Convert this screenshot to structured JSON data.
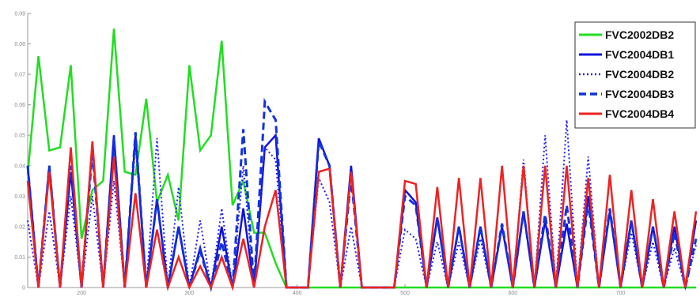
{
  "chart_data": {
    "type": "line",
    "title": "",
    "xlabel": "",
    "ylabel": "",
    "xlim": [
      0,
      62
    ],
    "ylim": [
      0,
      0.09
    ],
    "yticks": [
      {
        "value": 0,
        "label": "0"
      },
      {
        "value": 0.01,
        "label": "0.01"
      },
      {
        "value": 0.02,
        "label": "0.02"
      },
      {
        "value": 0.03,
        "label": "0.03"
      },
      {
        "value": 0.04,
        "label": "0.04"
      },
      {
        "value": 0.05,
        "label": "0.05"
      },
      {
        "value": 0.06,
        "label": "0.06"
      },
      {
        "value": 0.07,
        "label": "0.07"
      },
      {
        "value": 0.08,
        "label": "0.08"
      },
      {
        "value": 0.09,
        "label": "0.09"
      }
    ],
    "xticks": [
      {
        "value": 5,
        "label": "200"
      },
      {
        "value": 15,
        "label": "300"
      },
      {
        "value": 25,
        "label": "400"
      },
      {
        "value": 35,
        "label": "500"
      },
      {
        "value": 45,
        "label": "600"
      },
      {
        "value": 55,
        "label": "700"
      }
    ],
    "grid": false,
    "legend_position": "top-right",
    "series": [
      {
        "name": "FVC2002DB2",
        "color": "#22dd22",
        "dash": "solid",
        "values": [
          0.037,
          0.076,
          0.045,
          0.046,
          0.073,
          0.016,
          0.032,
          0.035,
          0.085,
          0.038,
          0.037,
          0.062,
          0.028,
          0.037,
          0.022,
          0.073,
          0.045,
          0.05,
          0.081,
          0.027,
          0.035,
          0.018,
          0.018,
          0.008,
          0,
          0,
          0,
          0,
          0,
          0,
          0,
          0,
          0,
          0,
          0,
          0,
          0,
          0,
          0,
          0,
          0,
          0,
          0,
          0,
          0,
          0,
          0,
          0,
          0,
          0,
          0,
          0,
          0,
          0,
          0,
          0,
          0,
          0,
          0,
          0,
          0,
          0,
          0
        ]
      },
      {
        "name": "FVC2004DB1",
        "color": "#1111dd",
        "dash": "solid",
        "values": [
          0.04,
          0,
          0.04,
          0,
          0.038,
          0,
          0.047,
          0,
          0.05,
          0,
          0.05,
          0,
          0.029,
          0,
          0.02,
          0,
          0.013,
          0,
          0.02,
          0,
          0.026,
          0,
          0.046,
          0.05,
          0,
          0,
          0,
          0.049,
          0.04,
          0,
          0.04,
          0,
          0,
          0,
          0,
          0.032,
          0.028,
          0,
          0.023,
          0,
          0.02,
          0,
          0.02,
          0,
          0.02,
          0,
          0.025,
          0,
          0.022,
          0,
          0.021,
          0,
          0.03,
          0,
          0.025,
          0,
          0.022,
          0,
          0.02,
          0,
          0.02,
          0,
          0.022
        ]
      },
      {
        "name": "FVC2004DB2",
        "color": "#2222ee",
        "dash": "dotted",
        "values": [
          0.022,
          0,
          0.025,
          0,
          0.03,
          0,
          0.03,
          0,
          0.035,
          0,
          0.047,
          0,
          0.049,
          0,
          0.033,
          0,
          0.022,
          0,
          0.026,
          0,
          0.04,
          0,
          0.046,
          0.042,
          0,
          0,
          0,
          0.036,
          0.028,
          0,
          0.02,
          0,
          0,
          0,
          0,
          0.019,
          0.016,
          0,
          0.015,
          0,
          0.015,
          0,
          0.016,
          0,
          0.02,
          0,
          0.042,
          0,
          0.05,
          0,
          0.055,
          0,
          0.043,
          0,
          0.025,
          0,
          0.018,
          0,
          0.015,
          0,
          0.013,
          0,
          0.014
        ]
      },
      {
        "name": "FVC2004DB3",
        "color": "#1133dd",
        "dash": "dashed",
        "values": [
          0.04,
          0,
          0.04,
          0,
          0.04,
          0,
          0.045,
          0,
          0.049,
          0,
          0.051,
          0,
          0.029,
          0,
          0.02,
          0,
          0.012,
          0,
          0.015,
          0,
          0.052,
          0,
          0.061,
          0.055,
          0,
          0,
          0,
          0.048,
          0.04,
          0,
          0.036,
          0,
          0,
          0,
          0,
          0.03,
          0.027,
          0,
          0.023,
          0,
          0.02,
          0,
          0.02,
          0,
          0.021,
          0,
          0.025,
          0,
          0.024,
          0,
          0.027,
          0,
          0.028,
          0,
          0.026,
          0,
          0.022,
          0,
          0.02,
          0,
          0.018,
          0,
          0.016
        ]
      },
      {
        "name": "FVC2004DB4",
        "color": "#ee2222",
        "dash": "solid",
        "values": [
          0.035,
          0,
          0.038,
          0,
          0.046,
          0,
          0.048,
          0,
          0.043,
          0,
          0.031,
          0,
          0.019,
          0,
          0.01,
          0,
          0.007,
          0,
          0.01,
          0,
          0.016,
          0,
          0.02,
          0.032,
          0,
          0,
          0,
          0.038,
          0.039,
          0,
          0.038,
          0,
          0,
          0,
          0,
          0.035,
          0.034,
          0,
          0.033,
          0,
          0.036,
          0,
          0.036,
          0,
          0.04,
          0,
          0.04,
          0,
          0.04,
          0,
          0.04,
          0,
          0.036,
          0,
          0.037,
          0,
          0.032,
          0,
          0.029,
          0,
          0.025,
          0,
          0.025
        ]
      }
    ]
  }
}
